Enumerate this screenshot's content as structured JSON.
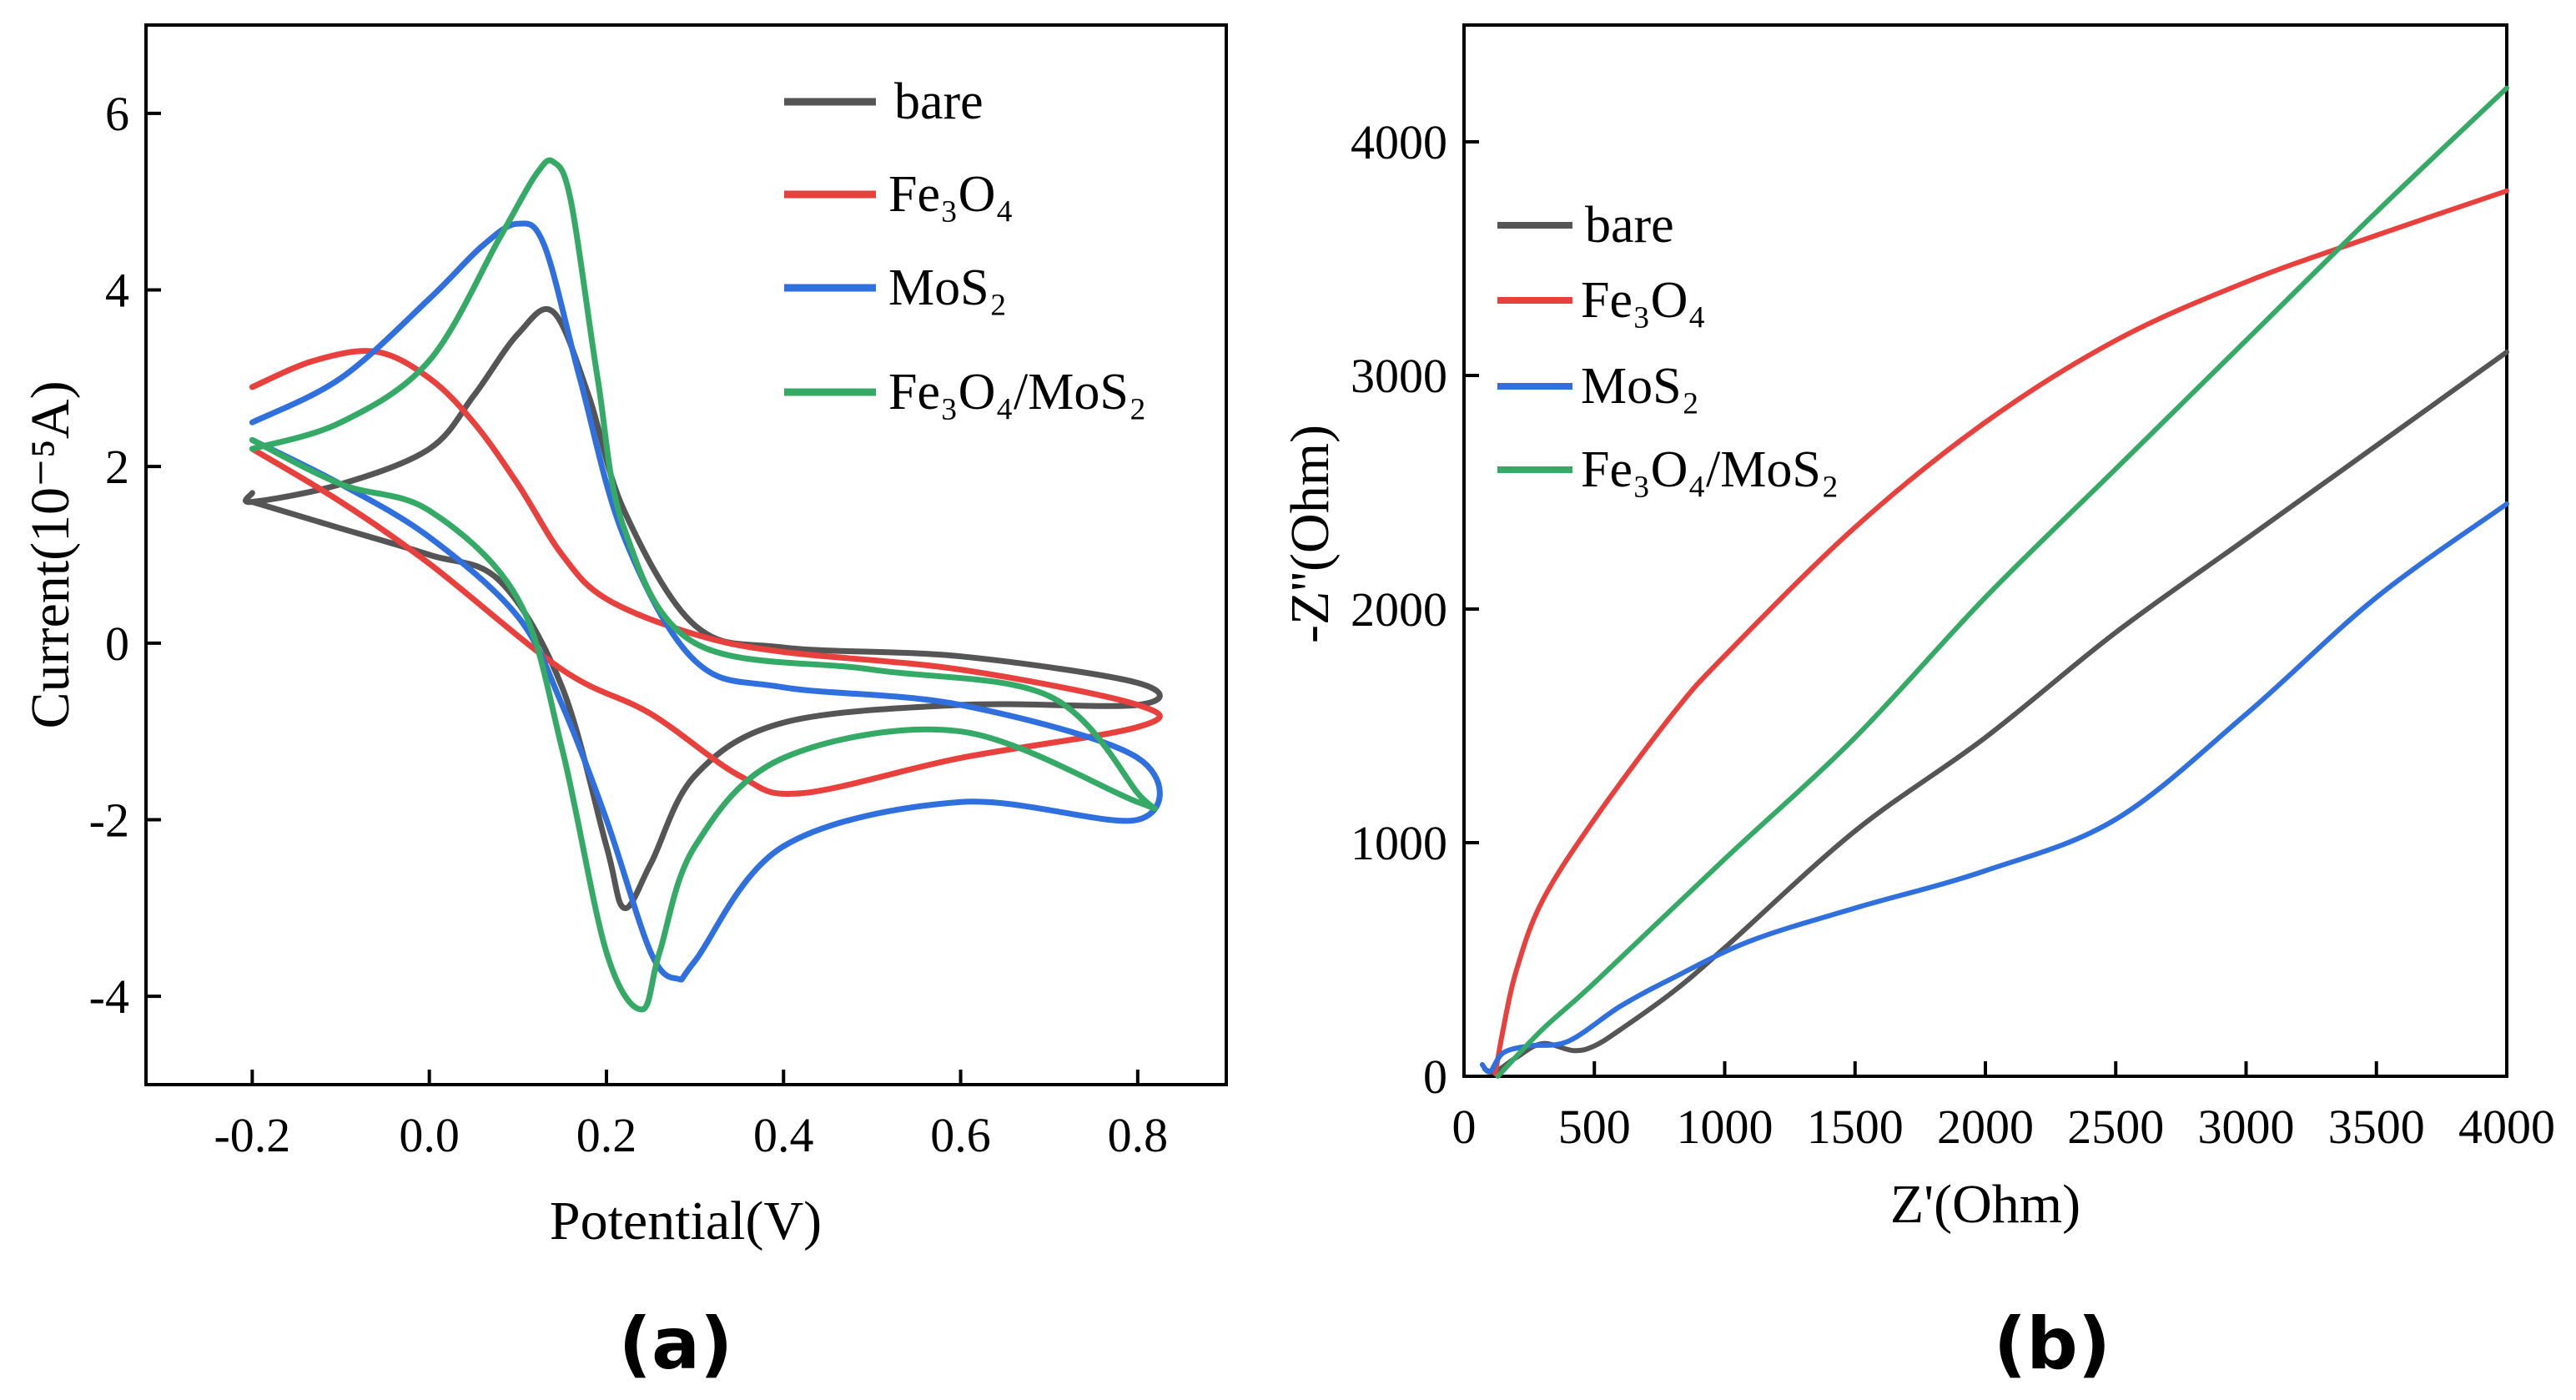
{
  "colors": {
    "bare": "#555555",
    "fe3o4": "#e8403c",
    "mos2": "#2f6fde",
    "fe3o4_mos2": "#35a966",
    "axis": "#000000"
  },
  "chart_data": [
    {
      "panel": "(a)",
      "type": "line",
      "title": "",
      "xlabel": "Potential(V)",
      "ylabel": "Current(10⁻⁵A)",
      "xlim": [
        -0.32,
        0.9
      ],
      "ylim": [
        -5,
        7
      ],
      "xticks": [
        -0.2,
        0.0,
        0.2,
        0.4,
        0.6,
        0.8
      ],
      "xtick_labels": [
        "-0.2",
        "0.0",
        "0.2",
        "0.4",
        "0.6",
        "0.8"
      ],
      "yticks": [
        -4,
        -2,
        0,
        2,
        4,
        6
      ],
      "ytick_labels": [
        "-4",
        "-2",
        "0",
        "2",
        "4",
        "6"
      ],
      "legend_position": "top-right",
      "series": [
        {
          "key": "bare",
          "name": "bare",
          "legend": "bare",
          "x": [
            -0.2,
            -0.2,
            -0.1,
            0.0,
            0.05,
            0.1,
            0.14,
            0.18,
            0.22,
            0.3,
            0.4,
            0.6,
            0.8,
            0.8,
            0.6,
            0.4,
            0.3,
            0.25,
            0.22,
            0.2,
            0.15,
            0.08,
            0.0,
            -0.1,
            -0.2
          ],
          "y": [
            1.7,
            1.6,
            1.8,
            2.2,
            2.8,
            3.5,
            3.75,
            2.8,
            1.5,
            0.2,
            -0.05,
            -0.15,
            -0.45,
            -0.7,
            -0.7,
            -0.9,
            -1.5,
            -2.5,
            -3.0,
            -2.3,
            -0.5,
            0.7,
            1.0,
            1.3,
            1.6
          ]
        },
        {
          "key": "fe3o4",
          "name": "Fe3O4",
          "legend": "Fe₃O₄",
          "x": [
            -0.2,
            -0.13,
            -0.06,
            0.0,
            0.05,
            0.1,
            0.15,
            0.2,
            0.3,
            0.4,
            0.6,
            0.8,
            0.8,
            0.6,
            0.42,
            0.35,
            0.25,
            0.15,
            0.0,
            -0.1,
            -0.2
          ],
          "y": [
            2.9,
            3.2,
            3.3,
            3.0,
            2.5,
            1.8,
            1.0,
            0.5,
            0.1,
            -0.1,
            -0.3,
            -0.7,
            -0.95,
            -1.3,
            -1.7,
            -1.5,
            -0.8,
            -0.3,
            0.9,
            1.6,
            2.2
          ]
        },
        {
          "key": "mos2",
          "name": "MoS2",
          "legend": "MoS₂",
          "x": [
            -0.2,
            -0.1,
            0.0,
            0.06,
            0.1,
            0.13,
            0.17,
            0.22,
            0.3,
            0.4,
            0.6,
            0.8,
            0.8,
            0.6,
            0.4,
            0.3,
            0.28,
            0.25,
            0.2,
            0.15,
            0.1,
            0.0,
            -0.1,
            -0.2
          ],
          "y": [
            2.5,
            3.0,
            3.9,
            4.5,
            4.75,
            4.5,
            3.0,
            1.2,
            -0.2,
            -0.5,
            -0.7,
            -1.3,
            -2.0,
            -1.8,
            -2.3,
            -3.6,
            -3.8,
            -3.5,
            -2.0,
            -0.7,
            0.3,
            1.2,
            1.8,
            2.3
          ]
        },
        {
          "key": "fe3o4_mos2",
          "name": "Fe3O4/MoS2",
          "legend_main": "Fe₃O₄/MoS₂",
          "x": [
            -0.2,
            -0.1,
            0.0,
            0.08,
            0.12,
            0.14,
            0.16,
            0.19,
            0.22,
            0.3,
            0.5,
            0.7,
            0.8,
            0.8,
            0.6,
            0.4,
            0.3,
            0.26,
            0.24,
            0.2,
            0.15,
            0.1,
            0.0,
            -0.1,
            -0.2
          ],
          "y": [
            2.2,
            2.5,
            3.2,
            4.6,
            5.3,
            5.45,
            5.0,
            3.0,
            1.3,
            0.0,
            -0.3,
            -0.6,
            -1.7,
            -1.8,
            -1.0,
            -1.3,
            -2.3,
            -3.5,
            -4.15,
            -3.5,
            -1.2,
            0.5,
            1.5,
            1.8,
            2.3
          ]
        }
      ]
    },
    {
      "panel": "(b)",
      "type": "line",
      "title": "",
      "xlabel": "Z'(Ohm)",
      "ylabel": "-Z''(Ohm)",
      "xlim": [
        0,
        4000
      ],
      "ylim": [
        0,
        4500
      ],
      "xticks": [
        0,
        500,
        1000,
        1500,
        2000,
        2500,
        3000,
        3500,
        4000
      ],
      "xtick_labels": [
        "0",
        "500",
        "1000",
        "1500",
        "2000",
        "2500",
        "3000",
        "3500",
        "4000"
      ],
      "yticks": [
        0,
        1000,
        2000,
        3000,
        4000
      ],
      "ytick_labels": [
        "0",
        "1000",
        "2000",
        "3000",
        "4000"
      ],
      "legend_position": "upper-left",
      "series": [
        {
          "key": "bare",
          "name": "bare",
          "legend": "bare",
          "x": [
            80,
            120,
            200,
            300,
            420,
            500,
            600,
            800,
            1000,
            1500,
            2000,
            2500,
            3000,
            3500,
            4000
          ],
          "y": [
            30,
            20,
            80,
            140,
            110,
            130,
            200,
            360,
            550,
            1050,
            1450,
            1900,
            2300,
            2700,
            3100
          ]
        },
        {
          "key": "fe3o4",
          "name": "Fe3O4",
          "legend": "Fe₃O₄",
          "x": [
            120,
            150,
            200,
            300,
            500,
            800,
            1000,
            1500,
            2000,
            2500,
            3000,
            3500,
            4000
          ],
          "y": [
            10,
            200,
            450,
            750,
            1100,
            1550,
            1800,
            2350,
            2800,
            3150,
            3400,
            3600,
            3790
          ]
        },
        {
          "key": "mos2",
          "name": "MoS2",
          "legend": "MoS₂",
          "x": [
            70,
            100,
            150,
            250,
            400,
            600,
            800,
            1100,
            1500,
            2000,
            2500,
            3000,
            3500,
            4000
          ],
          "y": [
            50,
            20,
            100,
            130,
            150,
            300,
            420,
            580,
            720,
            880,
            1100,
            1550,
            2050,
            2450
          ]
        },
        {
          "key": "fe3o4_mos2",
          "name": "Fe3O4/MoS2",
          "legend_main": "Fe₃O₄/MoS₂",
          "x": [
            130,
            300,
            500,
            1000,
            1500,
            2000,
            2500,
            3000,
            3500,
            4000
          ],
          "y": [
            0,
            200,
            400,
            930,
            1450,
            2050,
            2600,
            3150,
            3700,
            4230
          ]
        }
      ]
    }
  ]
}
